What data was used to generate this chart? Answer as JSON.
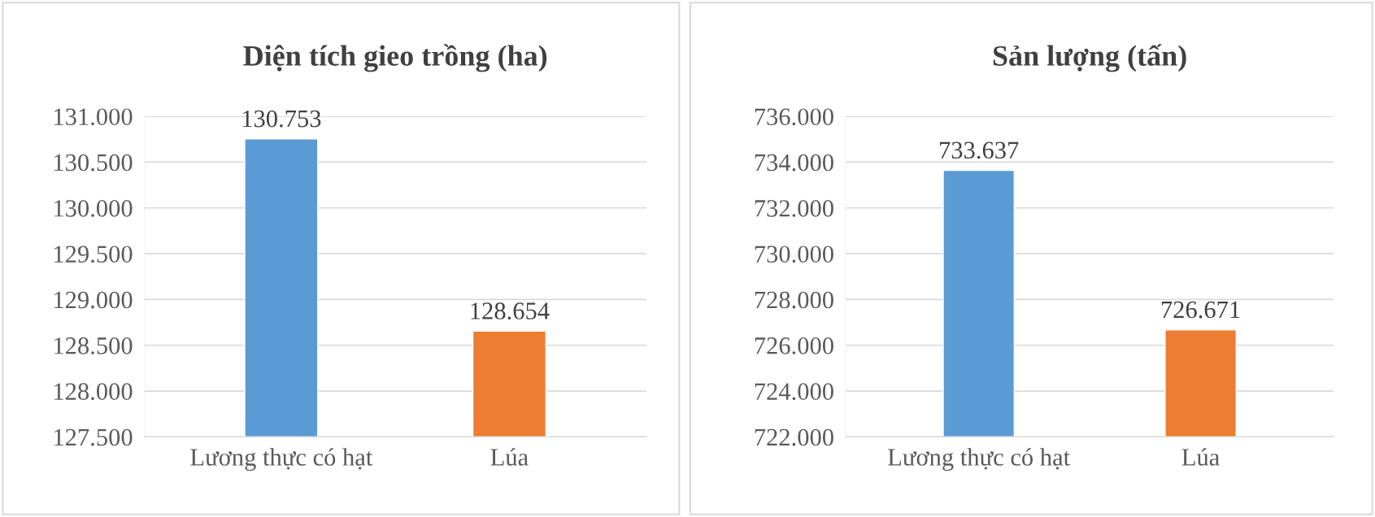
{
  "chart_data": [
    {
      "type": "bar",
      "title": "Diện tích gieo trồng (ha)",
      "categories": [
        "Lương thực có hạt",
        "Lúa"
      ],
      "values": [
        130753,
        128654
      ],
      "value_labels": [
        "130.753",
        "128.654"
      ],
      "colors": [
        "#5b9bd5",
        "#ed7d31"
      ],
      "ylim": [
        127500,
        131000
      ],
      "yticks": [
        {
          "value": 127500,
          "label": "127.500"
        },
        {
          "value": 128000,
          "label": "128.000"
        },
        {
          "value": 128500,
          "label": "128.500"
        },
        {
          "value": 129000,
          "label": "129.000"
        },
        {
          "value": 129500,
          "label": "129.500"
        },
        {
          "value": 130000,
          "label": "130.000"
        },
        {
          "value": 130500,
          "label": "130.500"
        },
        {
          "value": 131000,
          "label": "131.000"
        }
      ],
      "grid": "y"
    },
    {
      "type": "bar",
      "title": "Sản lượng (tấn)",
      "categories": [
        "Lương thực có hạt",
        "Lúa"
      ],
      "values": [
        733637,
        726671
      ],
      "value_labels": [
        "733.637",
        "726.671"
      ],
      "colors": [
        "#5b9bd5",
        "#ed7d31"
      ],
      "ylim": [
        722000,
        736000
      ],
      "yticks": [
        {
          "value": 722000,
          "label": "722.000"
        },
        {
          "value": 724000,
          "label": "724.000"
        },
        {
          "value": 726000,
          "label": "726.000"
        },
        {
          "value": 728000,
          "label": "728.000"
        },
        {
          "value": 730000,
          "label": "730.000"
        },
        {
          "value": 732000,
          "label": "732.000"
        },
        {
          "value": 734000,
          "label": "734.000"
        },
        {
          "value": 736000,
          "label": "736.000"
        }
      ],
      "grid": "y"
    }
  ]
}
